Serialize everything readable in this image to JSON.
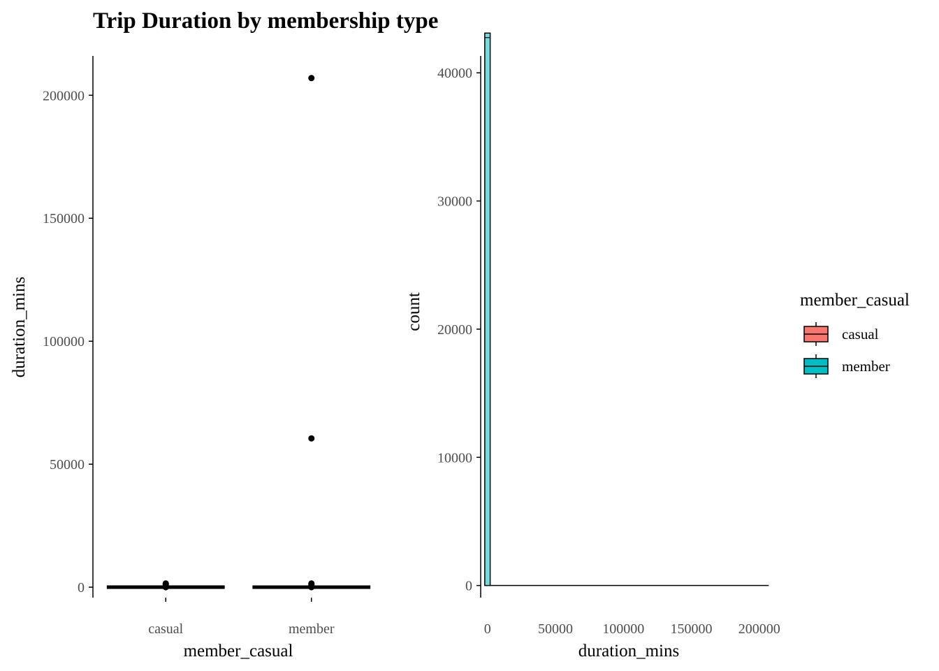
{
  "title": "Trip Duration by membership type",
  "chart_data": [
    {
      "type": "box",
      "xlabel": "member_casual",
      "ylabel": "duration_mins",
      "categories": [
        "casual",
        "member"
      ],
      "ylim": [
        -8500,
        216000
      ],
      "yticks": [
        0,
        50000,
        100000,
        150000,
        200000
      ],
      "grid": false,
      "boxes": [
        {
          "category": "casual",
          "q1": 7,
          "median": 13,
          "q3": 25,
          "outliers": [
            0,
            300,
            600,
            900,
            1200,
            1500
          ]
        },
        {
          "category": "member",
          "q1": 6,
          "median": 10,
          "q3": 17,
          "outliers": [
            0,
            300,
            600,
            900,
            1200,
            1500,
            60500,
            207000
          ]
        }
      ]
    },
    {
      "type": "histogram",
      "xlabel": "duration_mins",
      "ylabel": "count",
      "xlim": [
        -5000,
        213000
      ],
      "ylim": [
        -1000,
        43500
      ],
      "xticks": [
        0,
        50000,
        100000,
        150000,
        200000
      ],
      "yticks": [
        0,
        10000,
        20000,
        30000,
        40000
      ],
      "grid": false,
      "bins": [
        {
          "x0": -2000,
          "x1": 2000,
          "member_count": 43100,
          "casual_count": 350
        }
      ],
      "baseline_xmax": 207000
    }
  ],
  "legend": {
    "title": "member_casual",
    "position": "right",
    "items": [
      {
        "label": "casual",
        "color": "#F8766D"
      },
      {
        "label": "member",
        "color": "#00BFC4"
      }
    ]
  }
}
